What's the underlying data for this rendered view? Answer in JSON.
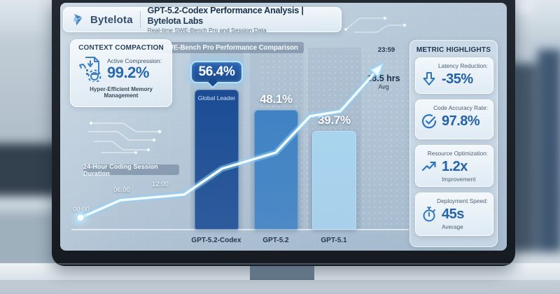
{
  "header": {
    "brand": "Bytelota",
    "title": "GPT-5.2-Codex Performance Analysis | Bytelota Labs",
    "subtitle": "Real-time SWE-Bench Pro and Session Data"
  },
  "context_panel": {
    "title": "CONTEXT COMPACTION",
    "metric_label": "Active Compression:",
    "metric_value": "99.2%",
    "caption": "Hyper-Efficient Memory Management"
  },
  "session_chart": {
    "label": "24-Hour Coding Session Duration",
    "ticks": [
      "00:00",
      "06:00",
      "12:00"
    ],
    "end_tick": "23:59",
    "avg_value": "18.5 hrs",
    "avg_caption": "Avg"
  },
  "chart_data": [
    {
      "type": "bar",
      "title": "SWE-Bench Pro Performance Comparison",
      "categories": [
        "GPT-5.2-Codex",
        "GPT-5.2",
        "GPT-5.1"
      ],
      "values": [
        56.4,
        48.1,
        39.7
      ],
      "value_labels": [
        "56.4%",
        "48.1%",
        "39.7%"
      ],
      "leader_badge": "Global Leader",
      "bar_colors": [
        "#1b4c94",
        "#3f82c4",
        "#a8d4ef"
      ],
      "ylim": [
        0,
        60
      ],
      "grid": "off",
      "legend": "none"
    },
    {
      "type": "line",
      "title": "24-Hour Coding Session Duration",
      "x": [
        "00:00",
        "06:00",
        "12:00",
        "23:59"
      ],
      "annotation": "18.5 hrs Avg",
      "style": "glowing ascending line ending in arrow at 23:59"
    }
  ],
  "metrics_panel": {
    "title": "METRIC HIGHLIGHTS",
    "cards": [
      {
        "icon": "arrow-down-icon",
        "label": "Latency Reduction:",
        "value": "-35%",
        "sub": ""
      },
      {
        "icon": "check-circle-icon",
        "label": "Code Accuracy Rate:",
        "value": "97.8%",
        "sub": ""
      },
      {
        "icon": "trend-up-icon",
        "label": "Resource Optimization:",
        "value": "1.2x",
        "sub": "Improvement"
      },
      {
        "icon": "stopwatch-icon",
        "label": "Deployment Speed:",
        "value": "45s",
        "sub": "Average"
      }
    ]
  },
  "colors": {
    "accent_blue": "#1b5ea8",
    "bar_dark": "#1b4c94",
    "bar_mid": "#3f82c4",
    "bar_light": "#a8d4ef",
    "line_glow": "#9fdcff",
    "panel_text": "#16324e"
  }
}
